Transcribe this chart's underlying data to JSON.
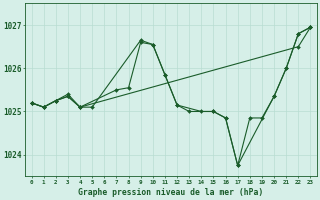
{
  "title": "Graphe pression niveau de la mer (hPa)",
  "background_color": "#d6efe8",
  "grid_color": "#b8ddd2",
  "line_color": "#1a5c2a",
  "xlim": [
    -0.5,
    23.5
  ],
  "ylim": [
    1023.5,
    1027.5
  ],
  "yticks": [
    1024,
    1025,
    1026,
    1027
  ],
  "xticks": [
    0,
    1,
    2,
    3,
    4,
    5,
    6,
    7,
    8,
    9,
    10,
    11,
    12,
    13,
    14,
    15,
    16,
    17,
    18,
    19,
    20,
    21,
    22,
    23
  ],
  "series1_x": [
    0,
    1,
    2,
    3,
    4,
    5,
    9,
    10,
    11,
    12,
    13,
    15,
    16,
    17,
    20,
    21,
    22,
    23
  ],
  "series1_y": [
    1025.2,
    1025.1,
    1025.25,
    1025.4,
    1025.1,
    1025.1,
    1026.65,
    1026.55,
    1025.85,
    1025.15,
    1025.0,
    1025.0,
    1024.85,
    1023.75,
    1025.35,
    1026.0,
    1026.8,
    1026.95
  ],
  "series2_x": [
    0,
    1,
    2,
    3,
    4,
    7,
    8,
    9,
    10,
    11,
    12,
    14,
    15,
    16,
    17,
    18,
    19,
    20,
    21,
    22,
    23
  ],
  "series2_y": [
    1025.2,
    1025.1,
    1025.25,
    1025.35,
    1025.1,
    1025.5,
    1025.55,
    1026.6,
    1026.55,
    1025.85,
    1025.15,
    1025.0,
    1025.0,
    1024.85,
    1023.75,
    1024.85,
    1024.85,
    1025.35,
    1026.0,
    1026.8,
    1026.95
  ],
  "series3_x": [
    0,
    1,
    2,
    3,
    4,
    22,
    23
  ],
  "series3_y": [
    1025.2,
    1025.1,
    1025.25,
    1025.35,
    1025.1,
    1026.5,
    1026.95
  ]
}
